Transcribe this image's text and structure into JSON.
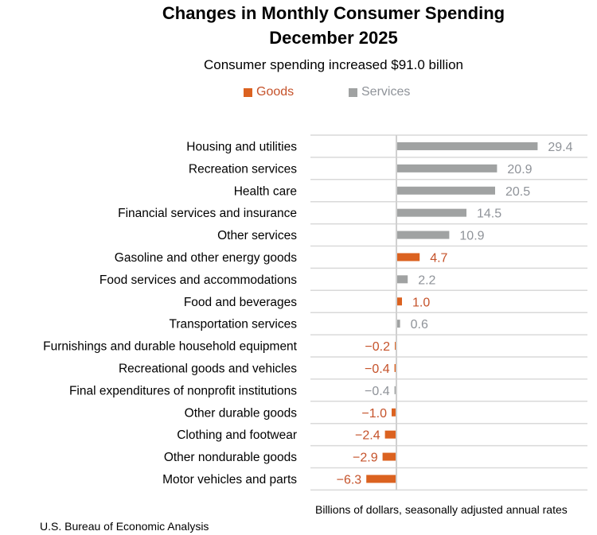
{
  "colors": {
    "goods": "#DB6220",
    "services": "#A0A2A2",
    "goods_label": "#C5522A",
    "services_label": "#8F9399",
    "grid": "#D9D9D9",
    "axis": "#D0D0D0"
  },
  "chart_data": {
    "type": "bar",
    "orientation": "horizontal",
    "title": "Changes in Monthly Consumer Spending",
    "title_line2": "December 2025",
    "subtitle": "Consumer spending increased $91.0 billion",
    "xlabel": "Billions of dollars, seasonally adjusted annual rates",
    "ylabel": "",
    "source": "U.S. Bureau of Economic Analysis",
    "legend": {
      "position": "top-center",
      "entries": [
        {
          "name": "Goods",
          "color_key": "goods"
        },
        {
          "name": "Services",
          "color_key": "services"
        }
      ]
    },
    "grid": "horizontal row separators",
    "xlim": [
      -10,
      40
    ],
    "categories": [
      "Housing and utilities",
      "Recreation services",
      "Health care",
      "Financial services and insurance",
      "Other services",
      "Gasoline and other energy goods",
      "Food services and accommodations",
      "Food and beverages",
      "Transportation services",
      "Furnishings and durable household equipment",
      "Recreational goods and vehicles",
      "Final expenditures of nonprofit institutions",
      "Other durable goods",
      "Clothing and footwear",
      "Other nondurable goods",
      "Motor vehicles and parts"
    ],
    "values": [
      29.4,
      20.9,
      20.5,
      14.5,
      10.9,
      4.7,
      2.2,
      1.0,
      0.6,
      -0.2,
      -0.4,
      -0.4,
      -1.0,
      -2.4,
      -2.9,
      -6.3
    ],
    "value_labels": [
      "29.4",
      "20.9",
      "20.5",
      "14.5",
      "10.9",
      "4.7",
      "2.2",
      "1.0",
      "0.6",
      "−0.2",
      "−0.4",
      "−0.4",
      "−1.0",
      "−2.4",
      "−2.9",
      "−6.3"
    ],
    "series_type": [
      "Services",
      "Services",
      "Services",
      "Services",
      "Services",
      "Goods",
      "Services",
      "Goods",
      "Services",
      "Goods",
      "Goods",
      "Services",
      "Goods",
      "Goods",
      "Goods",
      "Goods"
    ]
  }
}
